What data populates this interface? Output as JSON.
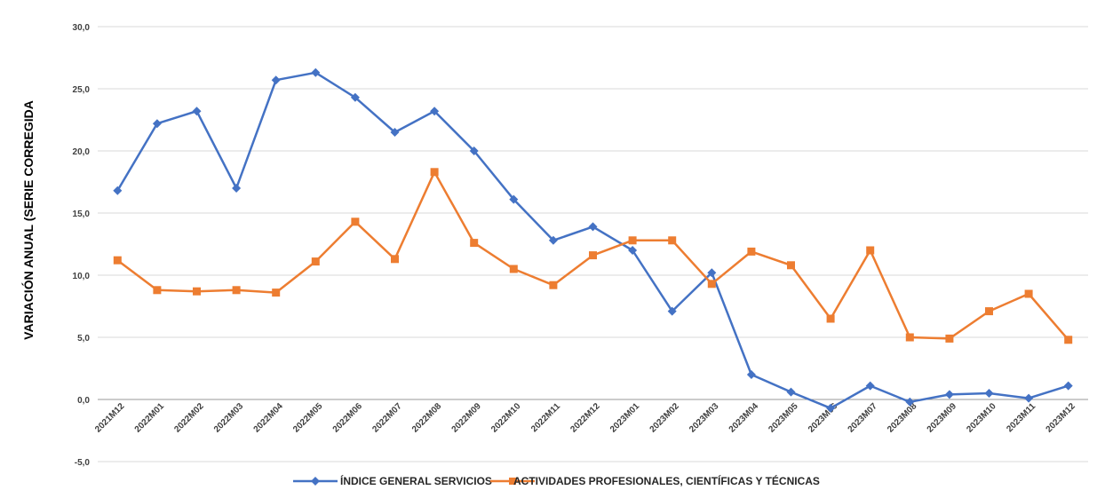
{
  "chart_data": {
    "type": "line",
    "title": "",
    "xlabel": "",
    "ylabel": "VARIACIÓN  ANUAL (SERIE CORREGIDA",
    "ylim": [
      -5,
      30
    ],
    "ytick_values": [
      30,
      25,
      20,
      15,
      10,
      5,
      0,
      -5
    ],
    "ytick_labels": [
      "30,0",
      "25,0",
      "20,0",
      "15,0",
      "10,0",
      "5,0",
      "0,0",
      "-5,0"
    ],
    "grid": true,
    "legend_position": "bottom-center",
    "categories": [
      "2021M12",
      "2022M01",
      "2022M02",
      "2022M03",
      "2022M04",
      "2022M05",
      "2022M06",
      "2022M07",
      "2022M08",
      "2022M09",
      "2022M10",
      "2022M11",
      "2022M12",
      "2023M01",
      "2023M02",
      "2023M03",
      "2023M04",
      "2023M05",
      "2023M06",
      "2023M07",
      "2023M08",
      "2023M09",
      "2023M10",
      "2023M11",
      "2023M12"
    ],
    "series": [
      {
        "name": "ÍNDICE GENERAL SERVICIOS",
        "color": "#4472C4",
        "marker": "diamond",
        "values": [
          16.8,
          22.2,
          23.2,
          17.0,
          25.7,
          26.3,
          24.3,
          21.5,
          23.2,
          20.0,
          16.1,
          12.8,
          13.9,
          12.0,
          7.1,
          10.2,
          2.0,
          0.6,
          -0.7,
          1.1,
          -0.2,
          0.4,
          0.5,
          0.1,
          1.1
        ]
      },
      {
        "name": "ACTIVIDADES PROFESIONALES, CIENTÍFICAS Y TÉCNICAS",
        "color": "#ED7D31",
        "marker": "square",
        "values": [
          11.2,
          8.8,
          8.7,
          8.8,
          8.6,
          11.1,
          14.3,
          11.3,
          18.3,
          12.6,
          10.5,
          9.2,
          11.6,
          12.8,
          12.8,
          9.3,
          11.9,
          10.8,
          6.5,
          12.0,
          5.0,
          4.9,
          7.1,
          8.5,
          4.8
        ]
      }
    ]
  }
}
